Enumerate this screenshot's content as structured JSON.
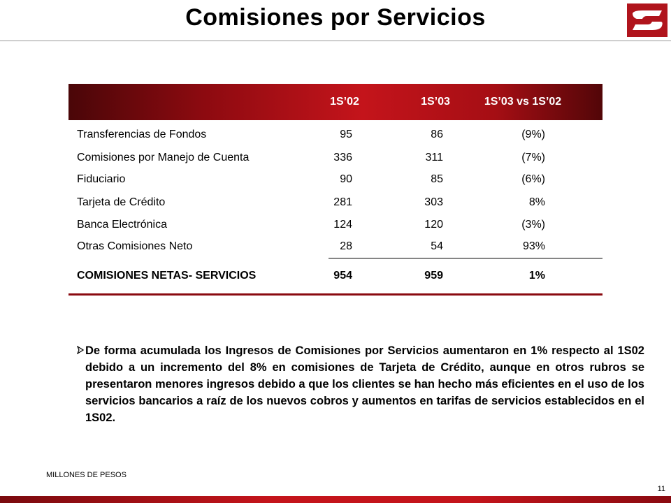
{
  "title": "Comisiones por Servicios",
  "colors": {
    "brand_red": "#c4141b",
    "dark_red": "#4a0608",
    "text": "#000000"
  },
  "logo": {
    "icon": "banorte-logo-icon"
  },
  "table": {
    "headers": [
      "1S’02",
      "1S’03",
      "1S’03 vs 1S’02"
    ],
    "rows": [
      {
        "label": "Transferencias de Fondos",
        "v1": "95",
        "v2": "86",
        "v3": "(9%)"
      },
      {
        "label": "Comisiones por Manejo de Cuenta",
        "v1": "336",
        "v2": "311",
        "v3": "(7%)"
      },
      {
        "label": "Fiduciario",
        "v1": "90",
        "v2": "85",
        "v3": "(6%)"
      },
      {
        "label": "Tarjeta de Crédito",
        "v1": "281",
        "v2": "303",
        "v3": "8%"
      },
      {
        "label": "Banca Electrónica",
        "v1": "124",
        "v2": "120",
        "v3": "(3%)"
      },
      {
        "label": "Otras Comisiones Neto",
        "v1": "28",
        "v2": "54",
        "v3": "93%"
      }
    ],
    "total": {
      "label": "COMISIONES NETAS- SERVICIOS",
      "v1": "954",
      "v2": "959",
      "v3": "1%"
    }
  },
  "bullet": {
    "icon": "arrow-bullet-icon",
    "text": "De forma acumulada los Ingresos de Comisiones por Servicios aumentaron en 1% respecto al 1S02 debido a un incremento del 8% en comisiones de Tarjeta de Crédito, aunque en otros rubros se presentaron menores ingresos debido a que los clientes se han hecho más eficientes en el uso de los servicios bancarios a raíz de los nuevos cobros y aumentos en tarifas de servicios establecidos en el 1S02."
  },
  "footnote": "MILLONES DE PESOS",
  "page_number": "11"
}
